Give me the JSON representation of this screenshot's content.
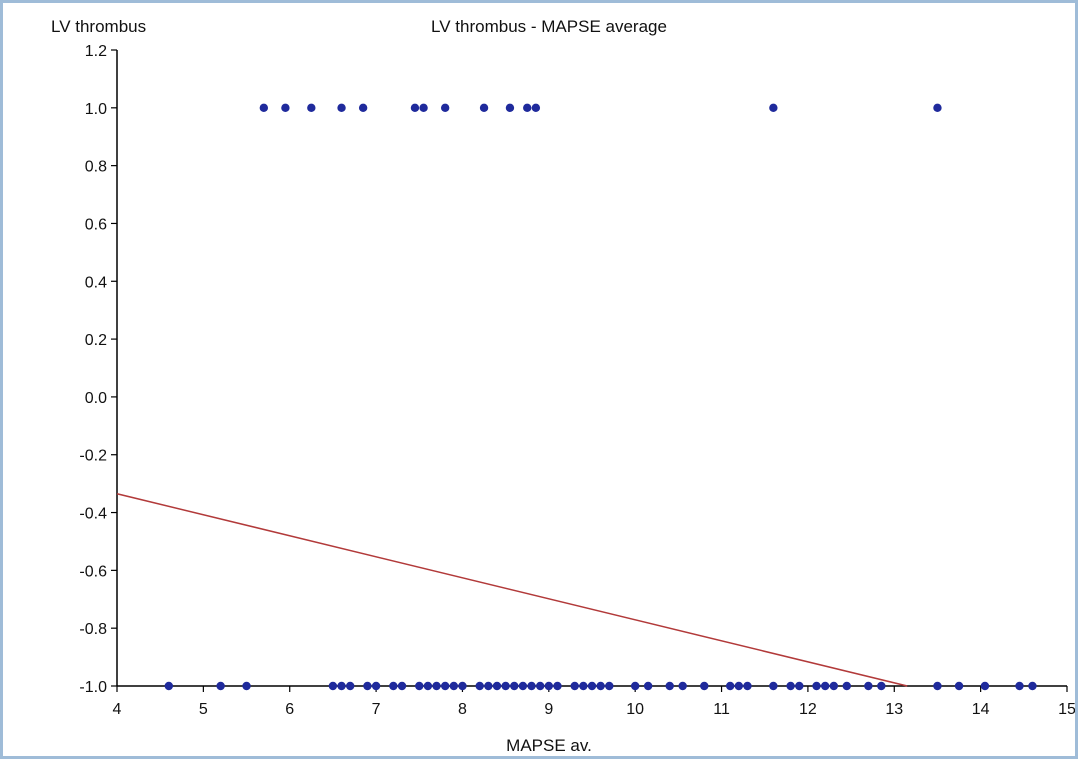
{
  "chart_data": {
    "type": "scatter",
    "title": "LV thrombus - MAPSE average",
    "xlabel": "MAPSE av.",
    "ylabel": "LV thrombus",
    "xlim": [
      4,
      15
    ],
    "ylim": [
      -1.0,
      1.2
    ],
    "x_ticks": [
      "4",
      "5",
      "6",
      "7",
      "8",
      "9",
      "10",
      "11",
      "12",
      "13",
      "14",
      "15"
    ],
    "y_ticks": [
      "1.2",
      "1.0",
      "0.8",
      "0.6",
      "0.4",
      "0.2",
      "0.0",
      "-0.2",
      "-0.4",
      "-0.6",
      "-0.8",
      "-1.0"
    ],
    "grid": false,
    "colors": {
      "points": "#1f2a9c",
      "fit_line": "#b23a3a",
      "axes": "#000000"
    },
    "series": [
      {
        "values": [
          {
            "x": 5.7,
            "y": 1.0
          },
          {
            "x": 5.95,
            "y": 1.0
          },
          {
            "x": 6.25,
            "y": 1.0
          },
          {
            "x": 6.6,
            "y": 1.0
          },
          {
            "x": 6.85,
            "y": 1.0
          },
          {
            "x": 7.45,
            "y": 1.0
          },
          {
            "x": 7.55,
            "y": 1.0
          },
          {
            "x": 7.8,
            "y": 1.0
          },
          {
            "x": 8.25,
            "y": 1.0
          },
          {
            "x": 8.55,
            "y": 1.0
          },
          {
            "x": 8.75,
            "y": 1.0
          },
          {
            "x": 8.85,
            "y": 1.0
          },
          {
            "x": 11.6,
            "y": 1.0
          },
          {
            "x": 13.5,
            "y": 1.0
          },
          {
            "x": 4.6,
            "y": -1.0
          },
          {
            "x": 5.2,
            "y": -1.0
          },
          {
            "x": 5.5,
            "y": -1.0
          },
          {
            "x": 6.5,
            "y": -1.0
          },
          {
            "x": 6.6,
            "y": -1.0
          },
          {
            "x": 6.7,
            "y": -1.0
          },
          {
            "x": 6.9,
            "y": -1.0
          },
          {
            "x": 7.0,
            "y": -1.0
          },
          {
            "x": 7.2,
            "y": -1.0
          },
          {
            "x": 7.3,
            "y": -1.0
          },
          {
            "x": 7.5,
            "y": -1.0
          },
          {
            "x": 7.6,
            "y": -1.0
          },
          {
            "x": 7.7,
            "y": -1.0
          },
          {
            "x": 7.8,
            "y": -1.0
          },
          {
            "x": 7.9,
            "y": -1.0
          },
          {
            "x": 8.0,
            "y": -1.0
          },
          {
            "x": 8.2,
            "y": -1.0
          },
          {
            "x": 8.3,
            "y": -1.0
          },
          {
            "x": 8.4,
            "y": -1.0
          },
          {
            "x": 8.5,
            "y": -1.0
          },
          {
            "x": 8.6,
            "y": -1.0
          },
          {
            "x": 8.7,
            "y": -1.0
          },
          {
            "x": 8.8,
            "y": -1.0
          },
          {
            "x": 8.9,
            "y": -1.0
          },
          {
            "x": 9.0,
            "y": -1.0
          },
          {
            "x": 9.1,
            "y": -1.0
          },
          {
            "x": 9.3,
            "y": -1.0
          },
          {
            "x": 9.4,
            "y": -1.0
          },
          {
            "x": 9.5,
            "y": -1.0
          },
          {
            "x": 9.6,
            "y": -1.0
          },
          {
            "x": 9.7,
            "y": -1.0
          },
          {
            "x": 10.0,
            "y": -1.0
          },
          {
            "x": 10.15,
            "y": -1.0
          },
          {
            "x": 10.4,
            "y": -1.0
          },
          {
            "x": 10.55,
            "y": -1.0
          },
          {
            "x": 10.8,
            "y": -1.0
          },
          {
            "x": 11.1,
            "y": -1.0
          },
          {
            "x": 11.2,
            "y": -1.0
          },
          {
            "x": 11.3,
            "y": -1.0
          },
          {
            "x": 11.6,
            "y": -1.0
          },
          {
            "x": 11.8,
            "y": -1.0
          },
          {
            "x": 11.9,
            "y": -1.0
          },
          {
            "x": 12.1,
            "y": -1.0
          },
          {
            "x": 12.2,
            "y": -1.0
          },
          {
            "x": 12.3,
            "y": -1.0
          },
          {
            "x": 12.45,
            "y": -1.0
          },
          {
            "x": 12.7,
            "y": -1.0
          },
          {
            "x": 12.85,
            "y": -1.0
          },
          {
            "x": 13.5,
            "y": -1.0
          },
          {
            "x": 13.75,
            "y": -1.0
          },
          {
            "x": 14.05,
            "y": -1.0
          },
          {
            "x": 14.45,
            "y": -1.0
          },
          {
            "x": 14.6,
            "y": -1.0
          }
        ]
      }
    ],
    "fit_line": {
      "x": [
        4.0,
        13.15
      ],
      "y": [
        -0.335,
        -1.0
      ]
    }
  }
}
